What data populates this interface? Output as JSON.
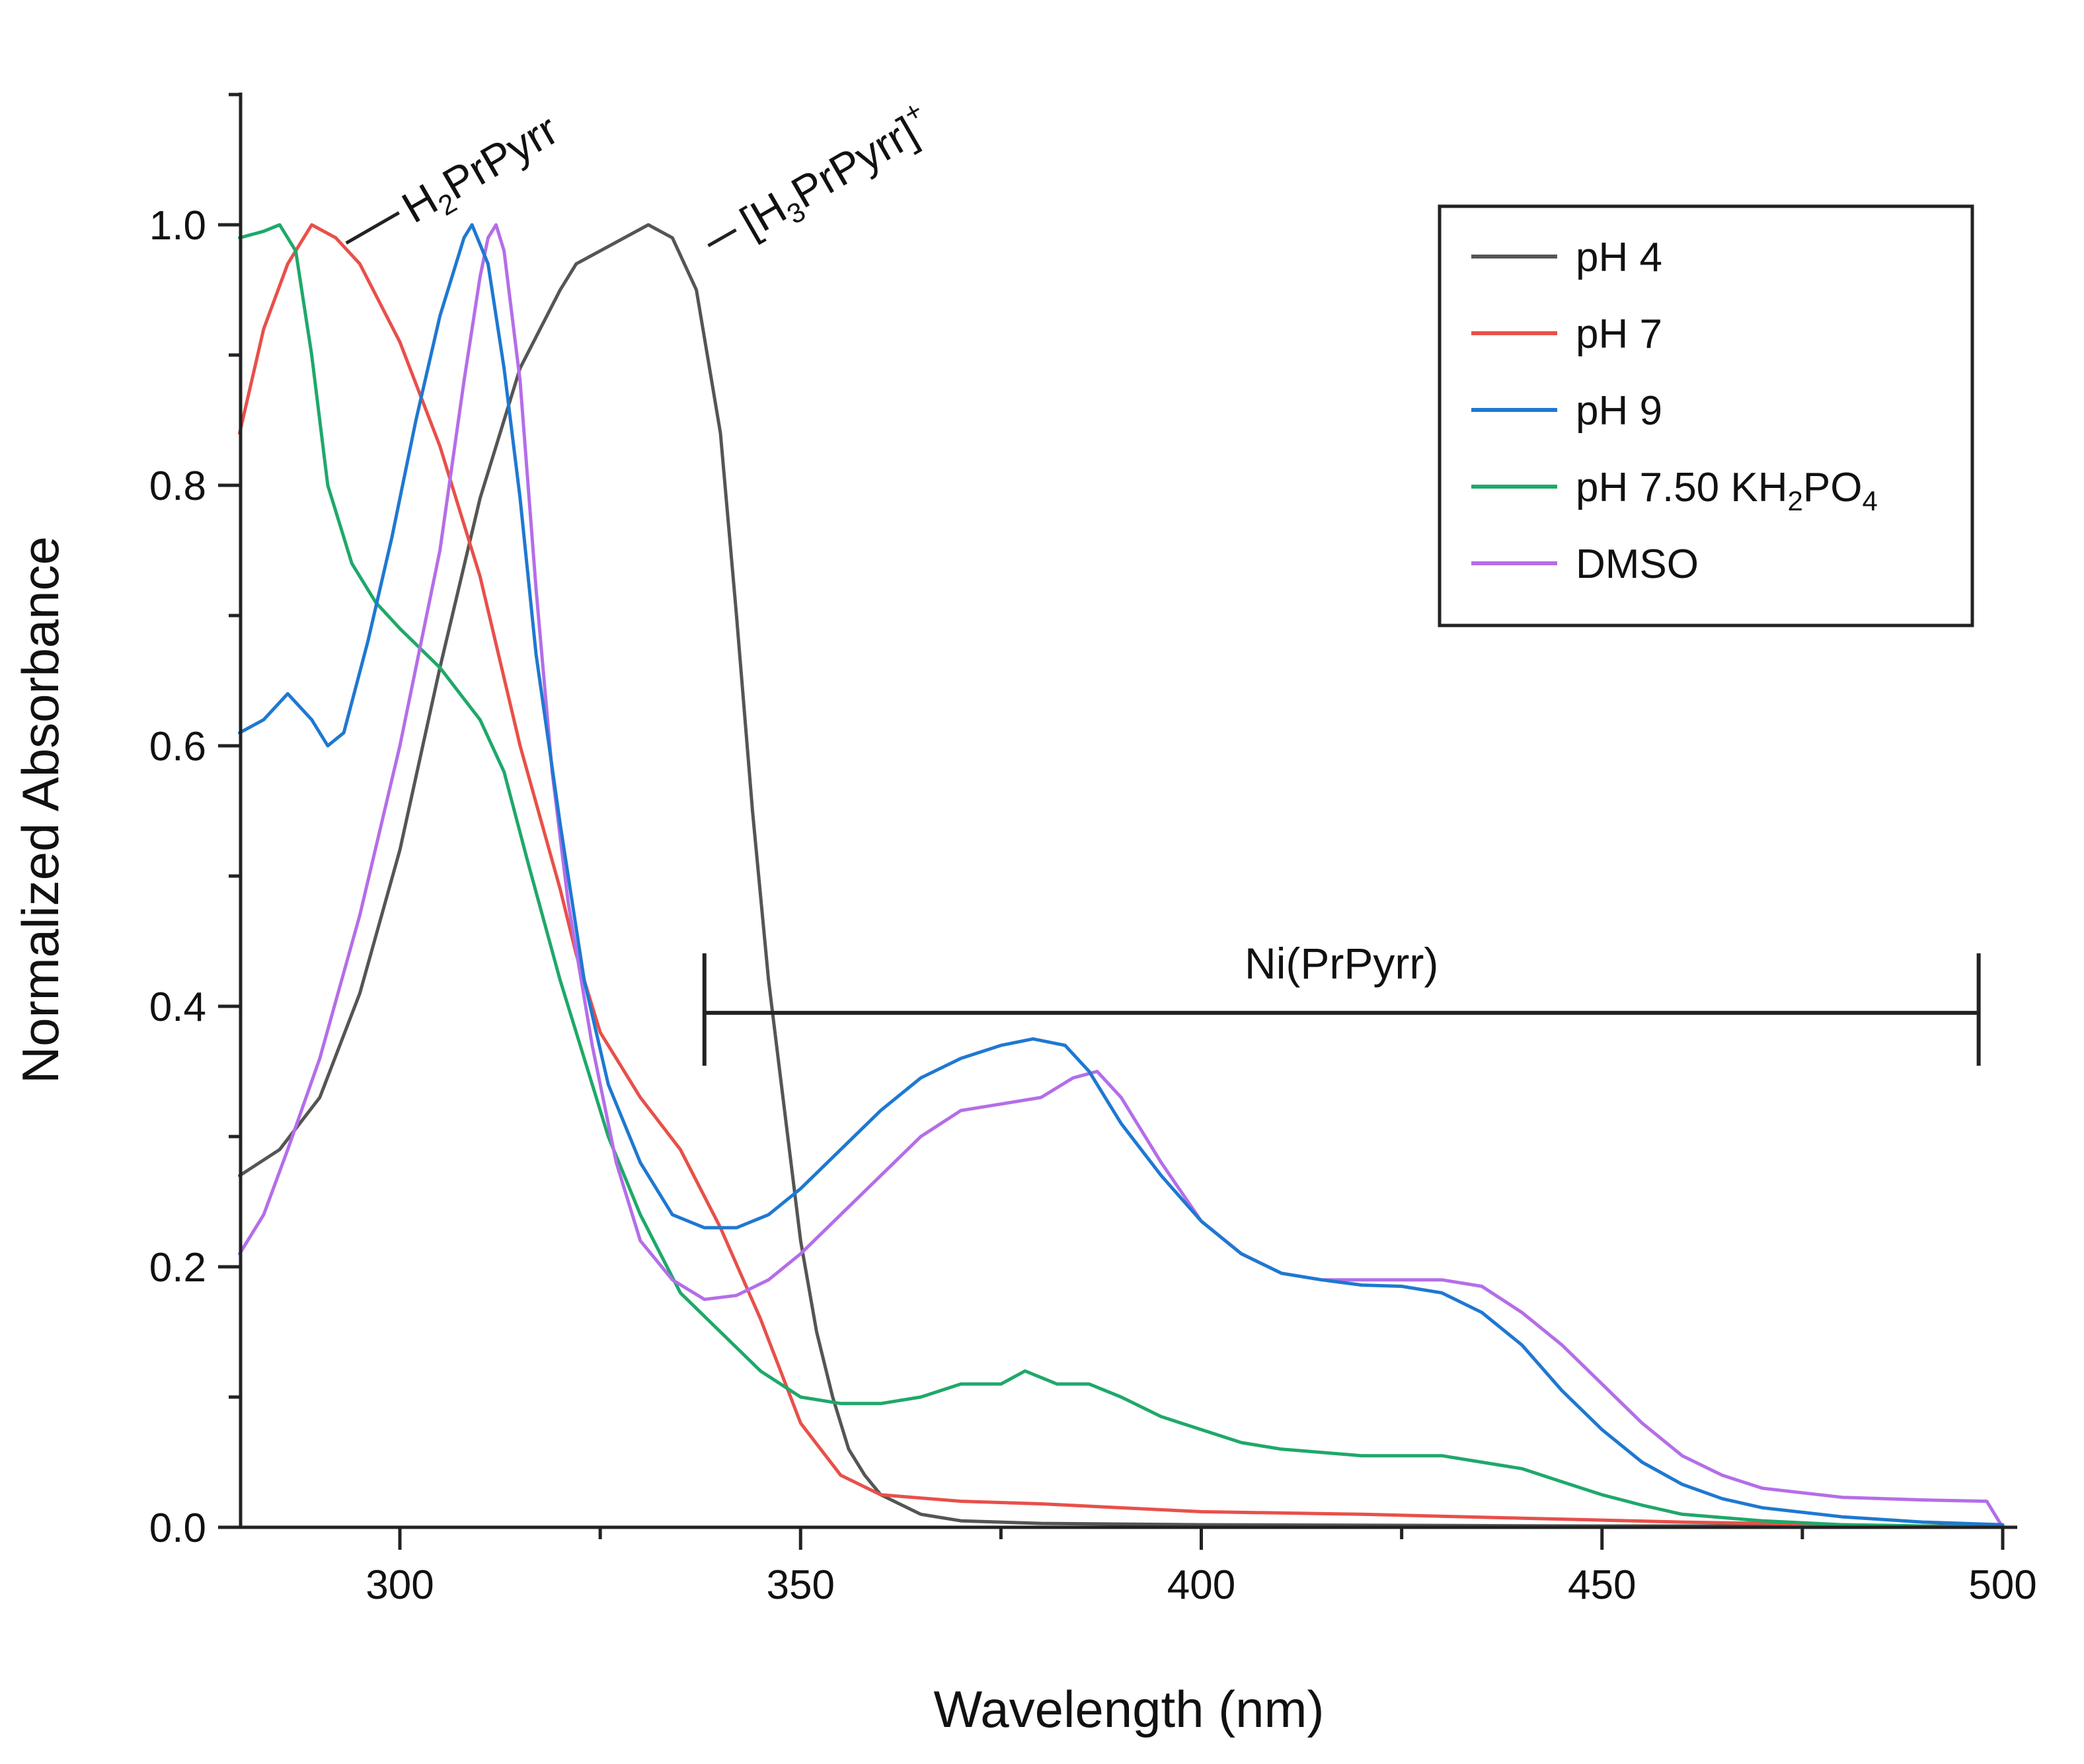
{
  "chart_data": {
    "type": "line",
    "title": "",
    "xlabel": "Wavelength (nm)",
    "ylabel": "Normalized Absorbance",
    "xlim": [
      280,
      500
    ],
    "ylim": [
      0.0,
      1.1
    ],
    "x_ticks": [
      300,
      350,
      400,
      450,
      500
    ],
    "x_tick_labels": [
      "300",
      "350",
      "400",
      "450",
      "500"
    ],
    "x_minor_ticks": [
      325,
      375,
      425,
      475
    ],
    "y_ticks": [
      0.0,
      0.2,
      0.4,
      0.6,
      0.8,
      1.0
    ],
    "y_tick_labels": [
      "0.0",
      "0.2",
      "0.4",
      "0.6",
      "0.8",
      "1.0"
    ],
    "y_minor_ticks": [
      0.1,
      0.3,
      0.5,
      0.7,
      0.9
    ],
    "grid": false,
    "legend_position": "top-right",
    "series": [
      {
        "name": "pH 4",
        "color": "#555555",
        "points": [
          [
            280,
            0.27
          ],
          [
            285,
            0.29
          ],
          [
            290,
            0.33
          ],
          [
            295,
            0.41
          ],
          [
            300,
            0.52
          ],
          [
            305,
            0.66
          ],
          [
            310,
            0.79
          ],
          [
            315,
            0.89
          ],
          [
            320,
            0.95
          ],
          [
            322,
            0.97
          ],
          [
            325,
            0.98
          ],
          [
            328,
            0.99
          ],
          [
            331,
            1.0
          ],
          [
            334,
            0.99
          ],
          [
            337,
            0.95
          ],
          [
            340,
            0.84
          ],
          [
            342,
            0.7
          ],
          [
            344,
            0.55
          ],
          [
            346,
            0.42
          ],
          [
            348,
            0.32
          ],
          [
            350,
            0.22
          ],
          [
            352,
            0.15
          ],
          [
            354,
            0.1
          ],
          [
            356,
            0.06
          ],
          [
            358,
            0.04
          ],
          [
            360,
            0.025
          ],
          [
            365,
            0.01
          ],
          [
            370,
            0.005
          ],
          [
            380,
            0.003
          ],
          [
            400,
            0.002
          ],
          [
            450,
            0.001
          ],
          [
            500,
            0.001
          ]
        ]
      },
      {
        "name": "pH 7",
        "color": "#e8504a",
        "points": [
          [
            280,
            0.84
          ],
          [
            283,
            0.92
          ],
          [
            286,
            0.97
          ],
          [
            289,
            1.0
          ],
          [
            292,
            0.99
          ],
          [
            295,
            0.97
          ],
          [
            300,
            0.91
          ],
          [
            305,
            0.83
          ],
          [
            310,
            0.73
          ],
          [
            315,
            0.6
          ],
          [
            320,
            0.49
          ],
          [
            322,
            0.44
          ],
          [
            325,
            0.38
          ],
          [
            330,
            0.33
          ],
          [
            335,
            0.29
          ],
          [
            340,
            0.23
          ],
          [
            345,
            0.16
          ],
          [
            350,
            0.08
          ],
          [
            355,
            0.04
          ],
          [
            360,
            0.025
          ],
          [
            370,
            0.02
          ],
          [
            380,
            0.018
          ],
          [
            400,
            0.012
          ],
          [
            420,
            0.01
          ],
          [
            440,
            0.007
          ],
          [
            460,
            0.004
          ],
          [
            480,
            0.002
          ],
          [
            500,
            0.0
          ]
        ]
      },
      {
        "name": "pH 9",
        "color": "#1f78d1",
        "points": [
          [
            280,
            0.61
          ],
          [
            283,
            0.62
          ],
          [
            286,
            0.64
          ],
          [
            289,
            0.62
          ],
          [
            291,
            0.6
          ],
          [
            293,
            0.61
          ],
          [
            296,
            0.68
          ],
          [
            299,
            0.76
          ],
          [
            302,
            0.85
          ],
          [
            305,
            0.93
          ],
          [
            308,
            0.99
          ],
          [
            309,
            1.0
          ],
          [
            311,
            0.97
          ],
          [
            313,
            0.89
          ],
          [
            315,
            0.79
          ],
          [
            317,
            0.67
          ],
          [
            320,
            0.54
          ],
          [
            323,
            0.42
          ],
          [
            326,
            0.34
          ],
          [
            330,
            0.28
          ],
          [
            334,
            0.24
          ],
          [
            338,
            0.23
          ],
          [
            342,
            0.23
          ],
          [
            346,
            0.24
          ],
          [
            350,
            0.26
          ],
          [
            355,
            0.29
          ],
          [
            360,
            0.32
          ],
          [
            365,
            0.345
          ],
          [
            370,
            0.36
          ],
          [
            375,
            0.37
          ],
          [
            379,
            0.375
          ],
          [
            383,
            0.37
          ],
          [
            386,
            0.35
          ],
          [
            390,
            0.31
          ],
          [
            395,
            0.27
          ],
          [
            400,
            0.235
          ],
          [
            405,
            0.21
          ],
          [
            410,
            0.195
          ],
          [
            415,
            0.19
          ],
          [
            420,
            0.186
          ],
          [
            425,
            0.185
          ],
          [
            430,
            0.18
          ],
          [
            435,
            0.165
          ],
          [
            440,
            0.14
          ],
          [
            445,
            0.105
          ],
          [
            450,
            0.075
          ],
          [
            455,
            0.05
          ],
          [
            460,
            0.033
          ],
          [
            465,
            0.022
          ],
          [
            470,
            0.015
          ],
          [
            480,
            0.008
          ],
          [
            490,
            0.004
          ],
          [
            500,
            0.002
          ]
        ]
      },
      {
        "name": "pH 7.50 KH2PO4",
        "color": "#1fa86a",
        "points": [
          [
            280,
            0.99
          ],
          [
            283,
            0.995
          ],
          [
            285,
            1.0
          ],
          [
            287,
            0.98
          ],
          [
            289,
            0.9
          ],
          [
            291,
            0.8
          ],
          [
            294,
            0.74
          ],
          [
            297,
            0.71
          ],
          [
            300,
            0.69
          ],
          [
            305,
            0.66
          ],
          [
            310,
            0.62
          ],
          [
            313,
            0.58
          ],
          [
            316,
            0.51
          ],
          [
            320,
            0.42
          ],
          [
            323,
            0.36
          ],
          [
            326,
            0.3
          ],
          [
            330,
            0.24
          ],
          [
            335,
            0.18
          ],
          [
            340,
            0.15
          ],
          [
            345,
            0.12
          ],
          [
            350,
            0.1
          ],
          [
            355,
            0.095
          ],
          [
            360,
            0.095
          ],
          [
            365,
            0.1
          ],
          [
            370,
            0.11
          ],
          [
            375,
            0.11
          ],
          [
            378,
            0.12
          ],
          [
            382,
            0.11
          ],
          [
            386,
            0.11
          ],
          [
            390,
            0.1
          ],
          [
            395,
            0.085
          ],
          [
            400,
            0.075
          ],
          [
            405,
            0.065
          ],
          [
            410,
            0.06
          ],
          [
            420,
            0.055
          ],
          [
            430,
            0.055
          ],
          [
            435,
            0.05
          ],
          [
            440,
            0.045
          ],
          [
            445,
            0.035
          ],
          [
            450,
            0.025
          ],
          [
            455,
            0.017
          ],
          [
            460,
            0.01
          ],
          [
            470,
            0.005
          ],
          [
            480,
            0.002
          ],
          [
            500,
            0.0
          ]
        ]
      },
      {
        "name": "DMSO",
        "color": "#b46ee8",
        "points": [
          [
            280,
            0.21
          ],
          [
            283,
            0.24
          ],
          [
            286,
            0.29
          ],
          [
            290,
            0.36
          ],
          [
            295,
            0.47
          ],
          [
            300,
            0.6
          ],
          [
            305,
            0.75
          ],
          [
            308,
            0.88
          ],
          [
            310,
            0.96
          ],
          [
            311,
            0.99
          ],
          [
            312,
            1.0
          ],
          [
            313,
            0.98
          ],
          [
            315,
            0.88
          ],
          [
            317,
            0.72
          ],
          [
            319,
            0.58
          ],
          [
            321,
            0.48
          ],
          [
            324,
            0.37
          ],
          [
            327,
            0.28
          ],
          [
            330,
            0.22
          ],
          [
            334,
            0.19
          ],
          [
            338,
            0.175
          ],
          [
            342,
            0.178
          ],
          [
            346,
            0.19
          ],
          [
            350,
            0.21
          ],
          [
            355,
            0.24
          ],
          [
            360,
            0.27
          ],
          [
            365,
            0.3
          ],
          [
            370,
            0.32
          ],
          [
            375,
            0.325
          ],
          [
            380,
            0.33
          ],
          [
            384,
            0.345
          ],
          [
            387,
            0.35
          ],
          [
            390,
            0.33
          ],
          [
            395,
            0.28
          ],
          [
            400,
            0.235
          ],
          [
            405,
            0.21
          ],
          [
            410,
            0.195
          ],
          [
            415,
            0.19
          ],
          [
            420,
            0.19
          ],
          [
            425,
            0.19
          ],
          [
            430,
            0.19
          ],
          [
            435,
            0.185
          ],
          [
            440,
            0.165
          ],
          [
            445,
            0.14
          ],
          [
            450,
            0.11
          ],
          [
            455,
            0.08
          ],
          [
            460,
            0.055
          ],
          [
            465,
            0.04
          ],
          [
            470,
            0.03
          ],
          [
            480,
            0.023
          ],
          [
            490,
            0.021
          ],
          [
            498,
            0.02
          ],
          [
            500,
            0.0
          ]
        ]
      }
    ],
    "annotations": [
      {
        "id": "h2",
        "main": "H",
        "sub": "2",
        "rest": "PrPyrr",
        "x": 290,
        "y": 0.99
      },
      {
        "id": "h3",
        "main": "[H",
        "sub": "3",
        "rest": "PrPyrr]",
        "sup": "+",
        "x": 336,
        "y": 0.99
      },
      {
        "id": "ni",
        "label": "Ni(PrPyrr)",
        "bracket_x": [
          338,
          497
        ],
        "bracket_y": 0.395
      }
    ],
    "legend": {
      "entries": [
        "pH 4",
        "pH 7",
        "pH 9",
        "pH 7.50 KH2PO4",
        "DMSO"
      ],
      "kh_entry": {
        "prefix": "pH 7.50 KH",
        "sub1": "2",
        "mid": "PO",
        "sub2": "4"
      }
    }
  }
}
